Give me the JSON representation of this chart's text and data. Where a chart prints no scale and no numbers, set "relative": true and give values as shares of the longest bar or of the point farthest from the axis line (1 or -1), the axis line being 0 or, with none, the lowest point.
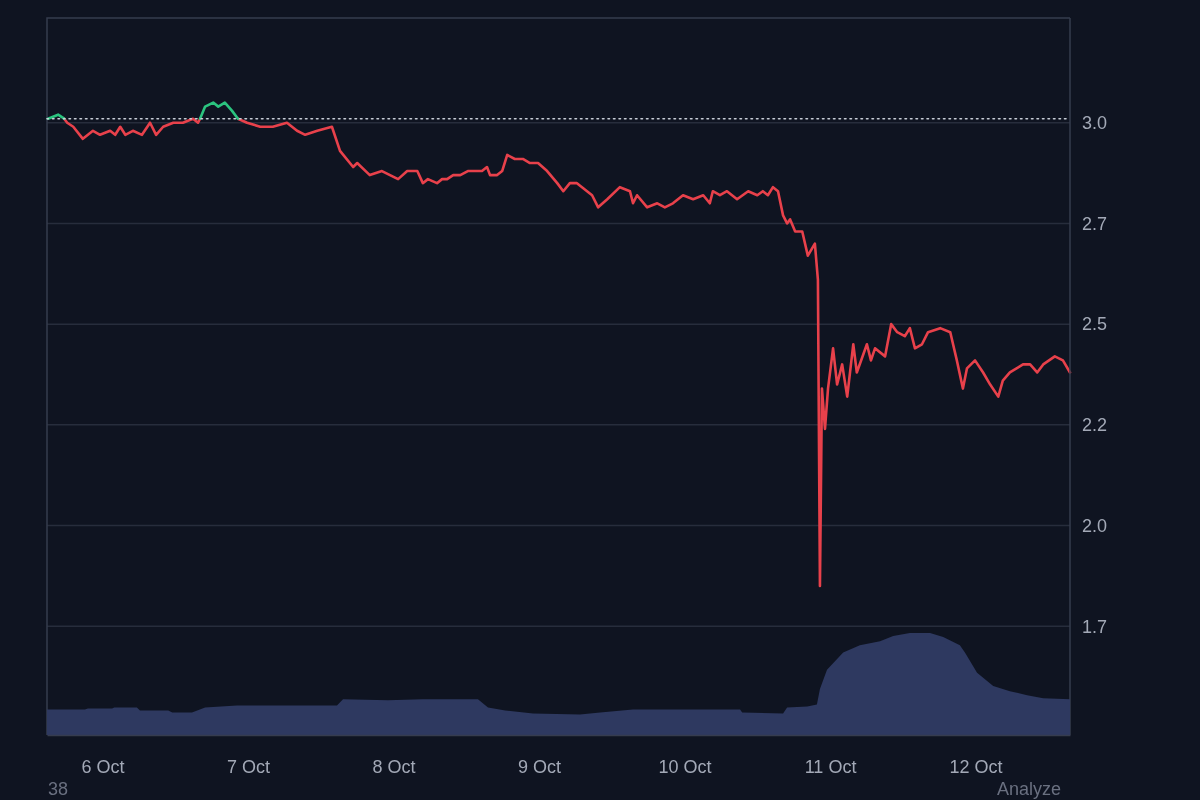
{
  "chart_data": [
    {
      "type": "line",
      "xlim": [
        "--10-05T14:50",
        "--10-12T15:35"
      ],
      "xticks": [
        {
          "value": "--10-06",
          "label": "6 Oct"
        },
        {
          "value": "--10-07",
          "label": "7 Oct"
        },
        {
          "value": "--10-08",
          "label": "8 Oct"
        },
        {
          "value": "--10-09",
          "label": "9 Oct"
        },
        {
          "value": "--10-10",
          "label": "10 Oct"
        },
        {
          "value": "--10-11",
          "label": "11 Oct"
        },
        {
          "value": "--10-12",
          "label": "12 Oct"
        }
      ],
      "ylim": [
        1.48,
        3.26
      ],
      "yticks": [
        {
          "value": 3,
          "label": "3.0"
        },
        {
          "value": 2.75,
          "label": "2.7"
        },
        2.5,
        {
          "value": 2.25,
          "label": "2.2"
        },
        {
          "value": 2,
          "label": "2.0"
        },
        {
          "value": 1.75,
          "label": "1.7"
        }
      ],
      "grid": "y",
      "ref_lines": [
        {
          "axis": "y",
          "value": 3.01,
          "color": "#c9ced8",
          "line_style": "dotted"
        }
      ],
      "annotations": [
        "38",
        "Analyze"
      ],
      "series": [
        {
          "color": "#e8414b",
          "x": [
            "--10-05T17:40",
            "--10-05T18:10",
            "--10-05T19:10",
            "--10-05T20:45",
            "--10-05T22:25",
            "--10-05T23:35",
            "--10-06T01:15",
            "--10-06T02:05",
            "--10-06T02:55",
            "--10-06T03:45",
            "--10-06T05:00",
            "--10-06T06:30",
            "--10-06T07:50",
            "--10-06T08:50",
            "--10-06T10:00",
            "--10-06T11:40",
            "--10-06T13:15",
            "--10-06T14:55",
            "--10-06T15:45",
            "--10-06T16:05",
            "--10-06T19:00",
            "--10-06T22:20",
            "--10-06T23:50",
            "--10-07T02:00",
            "--10-07T04:05",
            "--10-07T06:25",
            "--10-07T08:05",
            "--10-07T09:25",
            "--10-07T11:25",
            "--10-07T13:50",
            "--10-07T15:10",
            "--10-07T17:20",
            "--10-07T18:00",
            "--10-07T20:05",
            "--10-07T22:05",
            "--10-08T00:45",
            "--10-08T02:15",
            "--10-08T03:55",
            "--10-08T04:50",
            "--10-08T05:40",
            "--10-08T07:10",
            "--10-08T08:00",
            "--10-08T08:50",
            "--10-08T09:50",
            "--10-08T11:00",
            "--10-08T12:15",
            "--10-08T14:35",
            "--10-08T15:25",
            "--10-08T15:55",
            "--10-08T17:05",
            "--10-08T17:55",
            "--10-08T18:45",
            "--10-08T20:00",
            "--10-08T21:20",
            "--10-08T22:30",
            "--10-08T23:50",
            "--10-09T01:20",
            "--10-09T03:00",
            "--10-09T04:00",
            "--10-09T05:05",
            "--10-09T06:15",
            "--10-09T07:05",
            "--10-09T08:45",
            "--10-09T09:45",
            "--10-09T11:15",
            "--10-09T13:20",
            "--10-09T15:00",
            "--10-09T15:30",
            "--10-09T16:10",
            "--10-09T17:50",
            "--10-09T19:30",
            "--10-09T20:45",
            "--10-09T22:05",
            "--10-09T23:45",
            "--10-10T01:25",
            "--10-10T03:05",
            "--10-10T04:10",
            "--10-10T04:40",
            "--10-10T05:50",
            "--10-10T07:00",
            "--10-10T08:40",
            "--10-10T10:30",
            "--10-10T12:00",
            "--10-10T12:55",
            "--10-10T13:45",
            "--10-10T14:35",
            "--10-10T15:25",
            "--10-10T16:15",
            "--10-10T16:55",
            "--10-10T17:25",
            "--10-10T18:15",
            "--10-10T19:25",
            "--10-10T20:20",
            "--10-10T21:30",
            "--10-10T22:00",
            "--10-10T22:20",
            "--10-10T22:40",
            "--10-10T23:10",
            "--10-10T23:40",
            "--10-11T00:30",
            "--10-11T01:10",
            "--10-11T02:00",
            "--10-11T02:50",
            "--10-11T03:50",
            "--10-11T04:25",
            "--10-11T06:05",
            "--10-11T06:45",
            "--10-11T07:25",
            "--10-11T09:05",
            "--10-11T10:05",
            "--10-11T11:05",
            "--10-11T12:20",
            "--10-11T13:10",
            "--10-11T14:00",
            "--10-11T15:10",
            "--10-11T16:10",
            "--10-11T18:10",
            "--10-11T19:50",
            "--10-11T20:55",
            "--10-11T21:55",
            "--10-11T22:35",
            "--10-11T23:55",
            "--10-12T01:15",
            "--10-12T02:25",
            "--10-12T03:45",
            "--10-12T04:30",
            "--10-12T05:40",
            "--10-12T07:50",
            "--10-12T09:00",
            "--10-12T10:10",
            "--10-12T11:10",
            "--10-12T13:05",
            "--10-12T14:25",
            "--10-12T15:35"
          ],
          "values": [
            3.01,
            3.0,
            2.99,
            2.96,
            2.98,
            2.97,
            2.98,
            2.97,
            2.99,
            2.97,
            2.98,
            2.97,
            3.0,
            2.97,
            2.99,
            3.0,
            3.0,
            3.01,
            3.0,
            3.01,
            null,
            3.01,
            3.0,
            2.99,
            2.99,
            3.0,
            2.98,
            2.97,
            2.98,
            2.99,
            2.93,
            2.89,
            2.9,
            2.87,
            2.88,
            2.86,
            2.88,
            2.88,
            2.85,
            2.86,
            2.85,
            2.86,
            2.86,
            2.87,
            2.87,
            2.88,
            2.88,
            2.89,
            2.87,
            2.87,
            2.88,
            2.92,
            2.91,
            2.91,
            2.9,
            2.9,
            2.88,
            2.85,
            2.83,
            2.85,
            2.85,
            2.84,
            2.82,
            2.79,
            2.81,
            2.84,
            2.83,
            2.8,
            2.82,
            2.79,
            2.8,
            2.79,
            2.8,
            2.82,
            2.81,
            2.82,
            2.8,
            2.83,
            2.82,
            2.83,
            2.81,
            2.83,
            2.82,
            2.83,
            2.82,
            2.84,
            2.83,
            2.77,
            2.75,
            2.76,
            2.73,
            2.73,
            2.67,
            2.7,
            2.61,
            1.85,
            2.34,
            2.24,
            2.34,
            2.44,
            2.35,
            2.4,
            2.32,
            2.45,
            2.38,
            2.45,
            2.41,
            2.44,
            2.42,
            2.5,
            2.48,
            2.47,
            2.49,
            2.44,
            2.45,
            2.48,
            2.49,
            2.48,
            2.41,
            2.34,
            2.39,
            2.41,
            2.38,
            2.35,
            2.32,
            2.36,
            2.38,
            2.4,
            2.4,
            2.38,
            2.4,
            2.42,
            2.41,
            2.38
          ]
        },
        {
          "color": "#2bc47f",
          "x": [
            "--10-05T15:00",
            "--10-05T16:40",
            "--10-05T17:40",
            "--10-06T04:00",
            "--10-06T16:05",
            "--10-06T16:55",
            "--10-06T18:15",
            "--10-06T19:05",
            "--10-06T20:10",
            "--10-06T21:20",
            "--10-06T22:20"
          ],
          "values": [
            3.01,
            3.02,
            3.01,
            null,
            3.01,
            3.04,
            3.05,
            3.04,
            3.05,
            3.03,
            3.01
          ]
        }
      ]
    },
    {
      "type": "area",
      "relative": true,
      "color": "#2e3960",
      "xlim": [
        "--10-05T14:50",
        "--10-12T15:35"
      ],
      "tick_labels": false,
      "x": [
        "--10-05T14:50",
        "--10-05T21:05",
        "--10-05T21:35",
        "--10-06T01:35",
        "--10-06T01:55",
        "--10-06T05:40",
        "--10-06T06:10",
        "--10-06T10:50",
        "--10-06T11:30",
        "--10-06T14:45",
        "--10-06T16:55",
        "--10-06T22:10",
        "--10-07T14:40",
        "--10-07T15:40",
        "--10-07T23:05",
        "--10-08T04:50",
        "--10-08T13:55",
        "--10-08T15:35",
        "--10-08T18:25",
        "--10-08T23:00",
        "--10-09T06:45",
        "--10-09T10:05",
        "--10-09T15:30",
        "--10-10T09:10",
        "--10-10T09:30",
        "--10-10T16:15",
        "--10-10T16:55",
        "--10-10T20:15",
        "--10-10T21:50",
        "--10-10T22:20",
        "--10-10T23:30",
        "--10-11T02:10",
        "--10-11T04:55",
        "--10-11T08:15",
        "--10-11T10:25",
        "--10-11T13:10",
        "--10-11T16:30",
        "--10-11T18:40",
        "--10-11T21:25",
        "--10-11T22:15",
        "--10-12T00:15",
        "--10-12T02:55",
        "--10-12T05:40",
        "--10-12T08:30",
        "--10-12T11:10",
        "--10-12T15:35"
      ],
      "values": [
        0.25,
        0.25,
        0.26,
        0.26,
        0.27,
        0.27,
        0.24,
        0.24,
        0.22,
        0.22,
        0.27,
        0.29,
        0.29,
        0.35,
        0.34,
        0.35,
        0.35,
        0.27,
        0.24,
        0.21,
        0.2,
        0.22,
        0.25,
        0.25,
        0.22,
        0.21,
        0.27,
        0.28,
        0.3,
        0.45,
        0.64,
        0.81,
        0.88,
        0.92,
        0.97,
        1,
        1,
        0.96,
        0.88,
        0.81,
        0.61,
        0.48,
        0.43,
        0.39,
        0.36,
        0.35
      ]
    }
  ]
}
